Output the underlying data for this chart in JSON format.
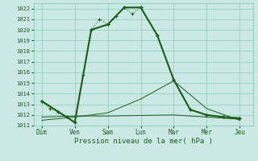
{
  "xlabel": "Pression niveau de la mer( hPa )",
  "x_labels": [
    "Dim",
    "Ven",
    "Sam",
    "Lun",
    "Mar",
    "Mer",
    "Jeu"
  ],
  "x_ticks": [
    0,
    2,
    4,
    6,
    8,
    10,
    12
  ],
  "ylim": [
    1011,
    1022.5
  ],
  "yticks": [
    1011,
    1012,
    1013,
    1014,
    1015,
    1016,
    1017,
    1018,
    1019,
    1020,
    1021,
    1022
  ],
  "background_color": "#cce8e4",
  "grid_color": "#88ccbb",
  "line_color": "#1a5c1a",
  "series_dotted": {
    "x": [
      0,
      0.5,
      1,
      1.5,
      2,
      2.5,
      3,
      3.5,
      4,
      4.5,
      5,
      5.5,
      6,
      7,
      8,
      9,
      10,
      11,
      12
    ],
    "y": [
      1013.3,
      1012.6,
      1012.3,
      1011.8,
      1011.3,
      1015.8,
      1020.0,
      1021.0,
      1020.5,
      1021.3,
      1022.1,
      1021.5,
      1022.1,
      1019.5,
      1015.3,
      1012.5,
      1012.0,
      1011.8,
      1011.7
    ]
  },
  "series_thick": {
    "x": [
      0,
      1,
      2,
      3,
      4,
      5,
      6,
      7,
      8,
      9,
      10,
      11,
      12
    ],
    "y": [
      1013.3,
      1012.3,
      1011.3,
      1020.0,
      1020.5,
      1022.1,
      1022.1,
      1019.5,
      1015.3,
      1012.5,
      1012.0,
      1011.8,
      1011.7
    ]
  },
  "series_flat1": {
    "x": [
      0,
      2,
      4,
      6,
      8,
      10,
      12
    ],
    "y": [
      1011.8,
      1011.9,
      1011.9,
      1011.95,
      1012.0,
      1011.8,
      1011.6
    ]
  },
  "series_slope": {
    "x": [
      0,
      2,
      4,
      6,
      8,
      10,
      12
    ],
    "y": [
      1011.5,
      1011.8,
      1012.2,
      1013.5,
      1015.2,
      1012.6,
      1011.5
    ]
  }
}
